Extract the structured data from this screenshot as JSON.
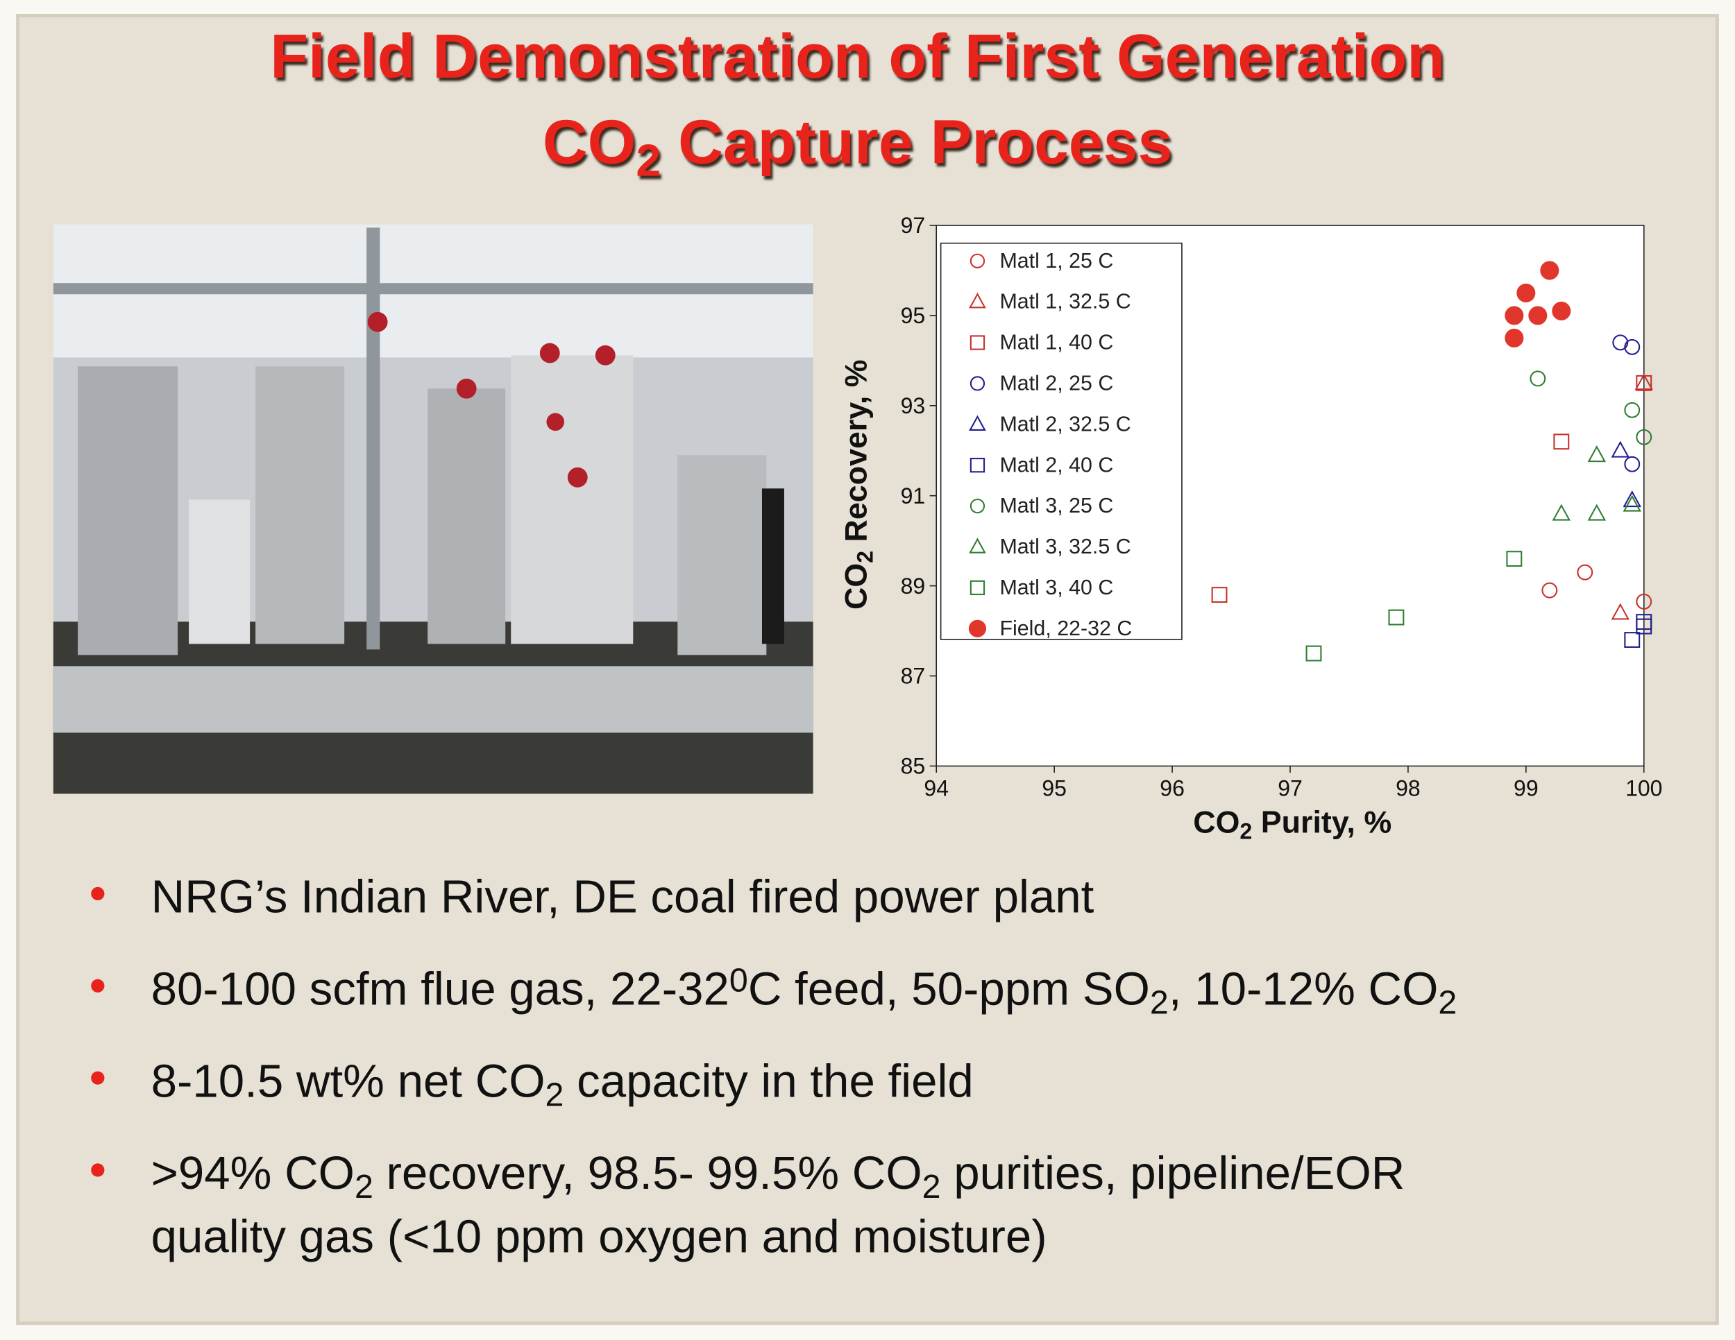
{
  "title": [
    [
      "Field Demonstration of First Generation"
    ],
    [
      "CO",
      {
        "text": "2",
        "style": "sub"
      },
      " Capture Process"
    ]
  ],
  "chart_data": {
    "type": "scatter",
    "xlabel": [
      "CO",
      {
        "text": "2",
        "style": "sub"
      },
      " Purity, %"
    ],
    "ylabel": [
      "CO",
      {
        "text": "2",
        "style": "sub"
      },
      " Recovery, %"
    ],
    "xlim": [
      94,
      100
    ],
    "xticks": [
      94,
      95,
      96,
      97,
      98,
      99,
      100
    ],
    "ylim": [
      85,
      97
    ],
    "yticks": [
      85,
      87,
      89,
      91,
      93,
      95,
      97
    ],
    "legend": "upper left",
    "series": [
      {
        "name": "Matl 1, 25 C",
        "color": "#c9302c",
        "marker": "circle",
        "filled": false,
        "x": [
          99.2,
          99.5,
          100
        ],
        "values": [
          88.9,
          89.3,
          88.65
        ]
      },
      {
        "name": "Matl 1, 32.5 C",
        "color": "#c9302c",
        "marker": "triangle",
        "filled": false,
        "x": [
          99.8,
          100
        ],
        "values": [
          88.4,
          93.5
        ]
      },
      {
        "name": "Matl 1, 40 C",
        "color": "#c9302c",
        "marker": "square",
        "filled": false,
        "x": [
          96.4,
          99.3,
          100
        ],
        "values": [
          88.8,
          92.2,
          93.5
        ]
      },
      {
        "name": "Matl  2, 25 C",
        "color": "#1f1f8f",
        "marker": "circle",
        "filled": false,
        "x": [
          99.8,
          99.9,
          99.9
        ],
        "values": [
          94.4,
          94.3,
          91.7
        ]
      },
      {
        "name": "Matl  2, 32.5 C",
        "color": "#1f1f8f",
        "marker": "triangle",
        "filled": false,
        "x": [
          99.8,
          99.9
        ],
        "values": [
          92.0,
          90.9
        ]
      },
      {
        "name": "Matl  2, 40 C",
        "color": "#1f1f8f",
        "marker": "square",
        "filled": false,
        "x": [
          99.9,
          100,
          100
        ],
        "values": [
          87.8,
          88.2,
          88.1
        ]
      },
      {
        "name": "Matl  3, 25 C",
        "color": "#2e7d32",
        "marker": "circle",
        "filled": false,
        "x": [
          99.1,
          99.9,
          100
        ],
        "values": [
          93.6,
          92.9,
          92.3
        ]
      },
      {
        "name": "Matl  3, 32.5 C",
        "color": "#2e7d32",
        "marker": "triangle",
        "filled": false,
        "x": [
          99.6,
          99.3,
          99.6,
          99.9
        ],
        "values": [
          91.9,
          90.6,
          90.6,
          90.8
        ]
      },
      {
        "name": "Matl 3, 40 C",
        "color": "#2e7d32",
        "marker": "square",
        "filled": false,
        "x": [
          97.2,
          97.9,
          98.9
        ],
        "values": [
          87.5,
          88.3,
          89.6
        ]
      },
      {
        "name": "Field, 22-32 C",
        "color": "#e0362b",
        "marker": "circle",
        "filled": true,
        "x": [
          99.2,
          99.0,
          98.9,
          99.1,
          99.3,
          98.9
        ],
        "values": [
          96.0,
          95.5,
          95.0,
          95.0,
          95.1,
          94.5
        ]
      }
    ]
  },
  "bullets": [
    [
      [
        "NRG’s Indian River, DE coal fired power plant"
      ]
    ],
    [
      [
        "80-100 scfm flue gas, 22-32",
        {
          "text": "0",
          "style": "sup"
        },
        "C feed, 50-ppm SO",
        {
          "text": "2",
          "style": "sub"
        },
        ", 10-12% CO",
        {
          "text": "2",
          "style": "sub"
        }
      ]
    ],
    [
      [
        "8-10.5 wt% net CO",
        {
          "text": "2",
          "style": "sub"
        },
        " capacity in the field"
      ]
    ],
    [
      [
        ">94% CO",
        {
          "text": "2",
          "style": "sub"
        },
        " recovery, 98.5- 99.5% CO",
        {
          "text": "2",
          "style": "sub"
        },
        " purities, pipeline/EOR"
      ],
      [
        "quality gas (<10 ppm oxygen and moisture)"
      ]
    ]
  ]
}
